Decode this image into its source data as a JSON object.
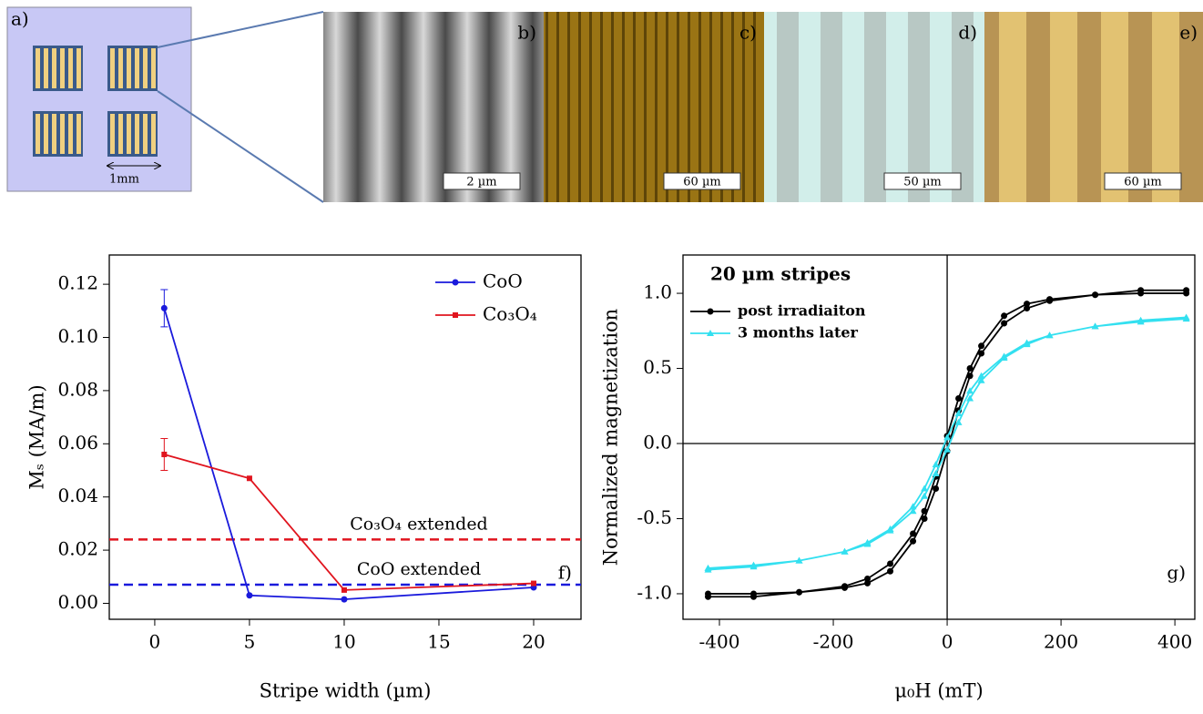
{
  "panel_a": {
    "label": "a)",
    "scale": "1mm"
  },
  "images": [
    {
      "label": "b)",
      "scale_bar": "2 µm"
    },
    {
      "label": "c)",
      "scale_bar": "60 µm"
    },
    {
      "label": "d)",
      "scale_bar": "50 µm"
    },
    {
      "label": "e)",
      "scale_bar": "60 µm"
    }
  ],
  "chart_data": [
    {
      "type": "line",
      "panel_label": "f)",
      "x_label": "Stripe width (µm)",
      "y_label": "Mₛ (MA/m)",
      "xlim": [
        -2.4,
        22.5
      ],
      "ylim": [
        -0.006,
        0.131
      ],
      "xticks": [
        0,
        5,
        10,
        15,
        20
      ],
      "yticks": [
        {
          "value": 0,
          "label": "0.00"
        },
        {
          "value": 0.02,
          "label": "0.02"
        },
        {
          "value": 0.04,
          "label": "0.04"
        },
        {
          "value": 0.06,
          "label": "0.06"
        },
        {
          "value": 0.08,
          "label": "0.08"
        },
        {
          "value": 0.1,
          "label": "0.10"
        },
        {
          "value": 0.12,
          "label": "0.12"
        }
      ],
      "legend": "upper right",
      "series": [
        {
          "name": "CoO",
          "color": "#1a1adc",
          "marker": "circle",
          "x": [
            0.5,
            5,
            10,
            20
          ],
          "values": [
            0.111,
            0.003,
            0.0015,
            0.006
          ],
          "errors": [
            0.007,
            null,
            null,
            null
          ]
        },
        {
          "name": "Co₃O₄",
          "color": "#e0141e",
          "marker": "square",
          "x": [
            0.5,
            5,
            10,
            20
          ],
          "values": [
            0.056,
            0.047,
            0.005,
            0.0075
          ],
          "errors": [
            0.006,
            null,
            null,
            null
          ]
        }
      ],
      "reference_lines": [
        {
          "value": 0.024,
          "label": "Co₃O₄ extended",
          "color": "#e0141e"
        },
        {
          "value": 0.007,
          "label": "CoO extended",
          "color": "#1a1adc"
        }
      ]
    },
    {
      "type": "line",
      "title": "20 µm stripes",
      "panel_label": "g)",
      "x_label": "μ₀H (mT)",
      "y_label": "Normalized magnetization",
      "xlim": [
        -464,
        435
      ],
      "ylim": [
        -1.17,
        1.255
      ],
      "xticks": [
        -400,
        -200,
        0,
        200,
        400
      ],
      "yticks": [
        {
          "value": -1,
          "label": "-1.0"
        },
        {
          "value": -0.5,
          "label": "-0.5"
        },
        {
          "value": 0,
          "label": "0.0"
        },
        {
          "value": 0.5,
          "label": "0.5"
        },
        {
          "value": 1,
          "label": "1.0"
        }
      ],
      "zero_lines": true,
      "legend": "upper left",
      "series": [
        {
          "name": "post irradiaiton",
          "color": "#000000",
          "marker": "circle",
          "x": [
            -420,
            -340,
            -260,
            -180,
            -140,
            -100,
            -60,
            -40,
            -20,
            0,
            20,
            40,
            60,
            100,
            140,
            180,
            260,
            340,
            420,
            420,
            340,
            260,
            180,
            140,
            100,
            60,
            40,
            20,
            0,
            -20,
            -40,
            -60,
            -100,
            -140,
            -180,
            -260,
            -340,
            -420
          ],
          "values": [
            -1.0,
            -1.0,
            -0.99,
            -0.96,
            -0.93,
            -0.85,
            -0.65,
            -0.5,
            -0.3,
            -0.05,
            0.22,
            0.45,
            0.6,
            0.8,
            0.9,
            0.95,
            0.99,
            1.02,
            1.02,
            1.0,
            1.0,
            0.99,
            0.96,
            0.93,
            0.85,
            0.65,
            0.5,
            0.3,
            0.05,
            -0.22,
            -0.45,
            -0.6,
            -0.8,
            -0.9,
            -0.95,
            -0.99,
            -1.02,
            -1.02
          ]
        },
        {
          "name": "3 months later",
          "color": "#33e0f0",
          "marker": "triangle",
          "x": [
            -420,
            -340,
            -260,
            -180,
            -140,
            -100,
            -60,
            -40,
            -20,
            0,
            20,
            40,
            60,
            100,
            140,
            180,
            260,
            340,
            420,
            420,
            340,
            260,
            180,
            140,
            100,
            60,
            40,
            20,
            0,
            -20,
            -40,
            -60,
            -100,
            -140,
            -180,
            -260,
            -340,
            -420
          ],
          "values": [
            -0.83,
            -0.81,
            -0.78,
            -0.72,
            -0.67,
            -0.58,
            -0.45,
            -0.35,
            -0.2,
            -0.04,
            0.14,
            0.3,
            0.42,
            0.57,
            0.66,
            0.72,
            0.78,
            0.82,
            0.84,
            0.83,
            0.81,
            0.78,
            0.72,
            0.67,
            0.58,
            0.45,
            0.35,
            0.2,
            0.04,
            -0.14,
            -0.3,
            -0.42,
            -0.57,
            -0.66,
            -0.72,
            -0.78,
            -0.82,
            -0.84
          ]
        }
      ]
    }
  ]
}
